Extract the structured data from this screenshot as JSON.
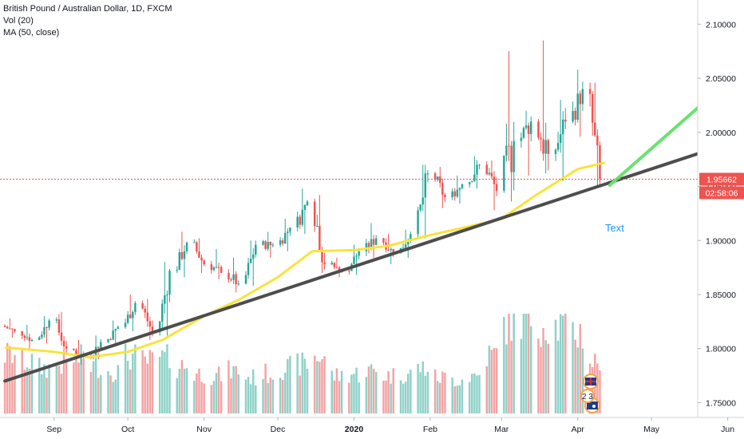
{
  "legend": {
    "title": "British Pound / Australian Dollar, 1D, FXCM",
    "vol": "Vol (20)",
    "ma": "MA (50, close)"
  },
  "colors": {
    "up": "#26a69a",
    "down": "#ef5350",
    "vol_up": "#8ed1c8",
    "vol_down": "#f4a3a3",
    "ma": "#f7e43a",
    "trend": "#4d4d4d",
    "projection": "#69e26f",
    "price_tag": "#ef5350",
    "annotation": "#2196f3"
  },
  "chart_data": {
    "type": "candlestick",
    "symbol": "British Pound / Australian Dollar",
    "interval": "1D",
    "source": "FXCM",
    "yaxis": {
      "ticks": [
        1.75,
        1.8,
        1.85,
        1.9,
        1.95,
        2.0,
        2.05,
        2.1
      ],
      "tick_labels": [
        "1.75000",
        "1.80000",
        "1.85000",
        "1.90000",
        "1.95000",
        "2.00000",
        "2.05000",
        "2.10000"
      ],
      "range": [
        1.74,
        2.115
      ],
      "side": "right"
    },
    "xaxis": {
      "tick_labels": [
        "Sep",
        "Oct",
        "Nov",
        "Dec",
        "2020",
        "Feb",
        "Mar",
        "Apr",
        "May",
        "Jun"
      ],
      "tick_dates": [
        "2019-09-01",
        "2019-10-01",
        "2019-11-01",
        "2019-12-01",
        "2020-01-01",
        "2020-02-01",
        "2020-03-01",
        "2020-04-01",
        "2020-05-01",
        "2020-06-01"
      ]
    },
    "last_price": "1.95662",
    "countdown": "02:58:06",
    "annotation": "Text",
    "candles": [
      [
        "2019-08-12",
        1.821,
        1.828,
        1.81,
        1.816
      ],
      [
        "2019-08-19",
        1.816,
        1.822,
        1.8,
        1.808
      ],
      [
        "2019-08-26",
        1.808,
        1.83,
        1.805,
        1.826
      ],
      [
        "2019-09-02",
        1.826,
        1.834,
        1.795,
        1.8
      ],
      [
        "2019-09-09",
        1.8,
        1.808,
        1.785,
        1.792
      ],
      [
        "2019-09-16",
        1.792,
        1.812,
        1.79,
        1.806
      ],
      [
        "2019-09-23",
        1.806,
        1.826,
        1.804,
        1.82
      ],
      [
        "2019-09-30",
        1.82,
        1.85,
        1.816,
        1.842
      ],
      [
        "2019-10-07",
        1.842,
        1.846,
        1.808,
        1.815
      ],
      [
        "2019-10-14",
        1.815,
        1.88,
        1.812,
        1.872
      ],
      [
        "2019-10-21",
        1.872,
        1.908,
        1.866,
        1.898
      ],
      [
        "2019-10-28",
        1.898,
        1.902,
        1.87,
        1.878
      ],
      [
        "2019-11-04",
        1.878,
        1.892,
        1.864,
        1.87
      ],
      [
        "2019-11-11",
        1.87,
        1.884,
        1.852,
        1.86
      ],
      [
        "2019-11-18",
        1.86,
        1.9,
        1.858,
        1.896
      ],
      [
        "2019-11-25",
        1.896,
        1.908,
        1.884,
        1.896
      ],
      [
        "2019-12-02",
        1.896,
        1.92,
        1.89,
        1.912
      ],
      [
        "2019-12-09",
        1.912,
        1.948,
        1.906,
        1.936
      ],
      [
        "2019-12-16",
        1.936,
        1.942,
        1.87,
        1.878
      ],
      [
        "2019-12-23",
        1.878,
        1.884,
        1.866,
        1.872
      ],
      [
        "2019-12-30",
        1.872,
        1.896,
        1.868,
        1.89
      ],
      [
        "2020-01-06",
        1.89,
        1.916,
        1.884,
        1.902
      ],
      [
        "2020-01-13",
        1.902,
        1.906,
        1.878,
        1.888
      ],
      [
        "2020-01-20",
        1.888,
        1.91,
        1.884,
        1.906
      ],
      [
        "2020-01-27",
        1.906,
        1.97,
        1.902,
        1.962
      ],
      [
        "2020-02-03",
        1.962,
        1.968,
        1.93,
        1.94
      ],
      [
        "2020-02-10",
        1.94,
        1.96,
        1.934,
        1.952
      ],
      [
        "2020-02-17",
        1.952,
        1.978,
        1.948,
        1.97
      ],
      [
        "2020-02-24",
        1.97,
        1.974,
        1.928,
        1.946
      ],
      [
        "2020-03-02",
        1.946,
        2.075,
        1.936,
        1.992
      ],
      [
        "2020-03-09",
        1.992,
        2.02,
        1.96,
        2.01
      ],
      [
        "2020-03-16",
        2.01,
        2.085,
        1.962,
        1.98
      ],
      [
        "2020-03-23",
        1.98,
        2.03,
        1.955,
        2.01
      ],
      [
        "2020-03-30",
        2.01,
        2.058,
        1.996,
        2.04
      ],
      [
        "2020-04-06",
        2.04,
        2.046,
        1.95,
        1.957
      ]
    ],
    "volume_relative": [
      0.62,
      0.55,
      0.48,
      0.52,
      0.58,
      0.5,
      0.45,
      0.6,
      0.55,
      0.58,
      0.5,
      0.42,
      0.4,
      0.45,
      0.38,
      0.42,
      0.48,
      0.52,
      0.6,
      0.4,
      0.42,
      0.45,
      0.4,
      0.42,
      0.48,
      0.38,
      0.36,
      0.4,
      0.62,
      0.95,
      1.0,
      0.95,
      0.92,
      0.85,
      0.55
    ],
    "indicators": {
      "volume": {
        "name": "Vol (20)"
      },
      "moving_average": {
        "name": "MA (50, close)",
        "values": [
          [
            "2019-08-12",
            1.801
          ],
          [
            "2019-09-01",
            1.797
          ],
          [
            "2019-09-15",
            1.792
          ],
          [
            "2019-10-01",
            1.797
          ],
          [
            "2019-10-15",
            1.808
          ],
          [
            "2019-11-01",
            1.83
          ],
          [
            "2019-11-15",
            1.845
          ],
          [
            "2019-12-01",
            1.866
          ],
          [
            "2019-12-15",
            1.89
          ],
          [
            "2020-01-01",
            1.891
          ],
          [
            "2020-01-15",
            1.895
          ],
          [
            "2020-02-01",
            1.905
          ],
          [
            "2020-02-15",
            1.912
          ],
          [
            "2020-03-01",
            1.92
          ],
          [
            "2020-03-15",
            1.942
          ],
          [
            "2020-04-01",
            1.966
          ],
          [
            "2020-04-12",
            1.972
          ]
        ]
      }
    },
    "drawings": {
      "trend_line": {
        "from": [
          "2019-08-12",
          1.77
        ],
        "to": [
          "2020-06-06",
          1.993
        ]
      },
      "projection_line": {
        "from": [
          "2020-04-14",
          1.951
        ],
        "to": [
          "2020-06-06",
          2.057
        ]
      }
    }
  }
}
